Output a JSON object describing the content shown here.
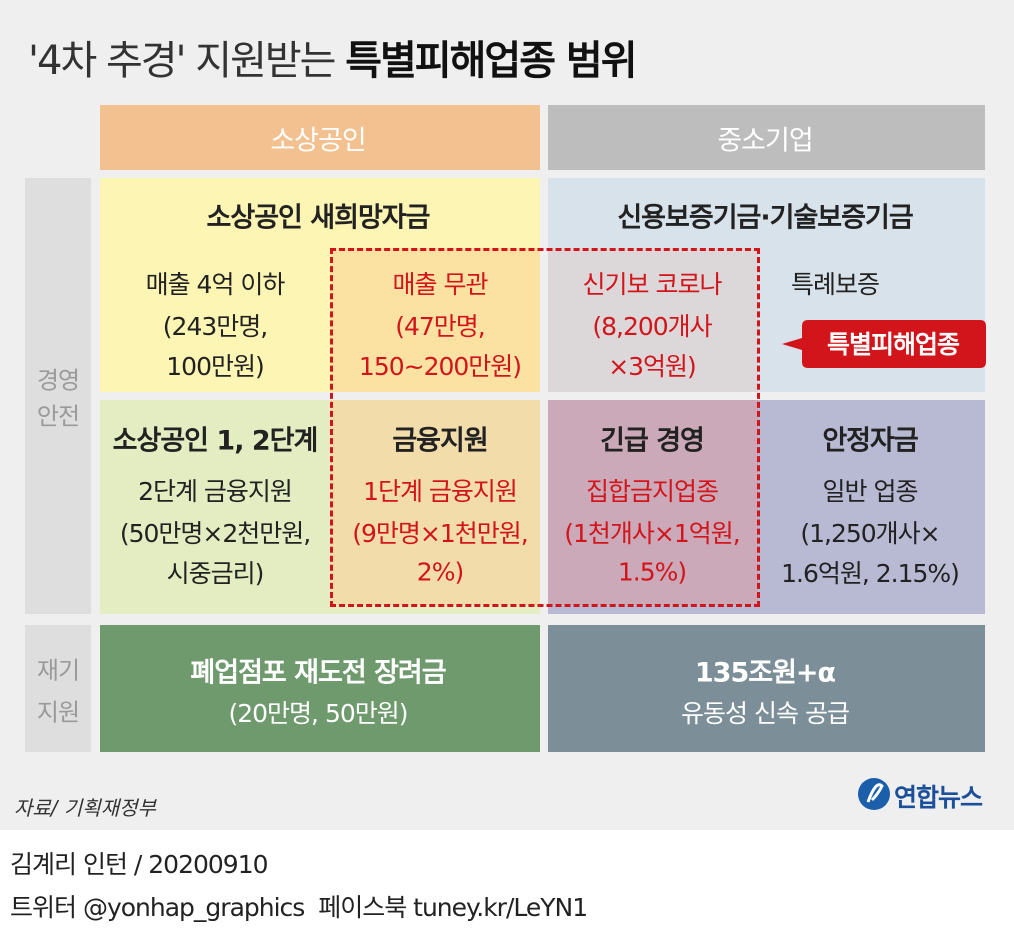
{
  "title": {
    "prefix": "'4차 추경' 지원받는",
    "emphasis": "특별피해업종 범위"
  },
  "column_headers": [
    "소상공인",
    "중소기업"
  ],
  "row_labels": [
    [
      "경영",
      "안전"
    ],
    [
      "재기",
      "지원"
    ]
  ],
  "management": {
    "small_business_top": {
      "title": "소상공인 새희망자금",
      "general": [
        "매출 4억 이하",
        "(243만명,",
        "100만원)"
      ],
      "special": [
        "매출 무관",
        "(47만명,",
        "150~200만원)"
      ]
    },
    "sme_top": {
      "title": "신용보증기금·기술보증기금",
      "special": [
        "신기보 코로나",
        "(8,200개사",
        "×3억원)"
      ],
      "general": [
        "특례보증"
      ]
    },
    "small_business_bottom": {
      "title": [
        "소상공인 1, 2단계",
        "금융지원"
      ],
      "general": [
        "2단계 금융지원",
        "(50만명×2천만원,",
        "시중금리)"
      ],
      "special": [
        "1단계 금융지원",
        "(9만명×1천만원,",
        "2%)"
      ]
    },
    "sme_bottom": {
      "special_title": "긴급 경영",
      "special": [
        "집합금지업종",
        "(1천개사×1억원,",
        "1.5%)"
      ],
      "general_title": "안정자금",
      "general": [
        "일반 업종",
        "(1,250개사×",
        "1.6억원, 2.15%)"
      ]
    }
  },
  "badge": "특별피해업종",
  "recovery": {
    "small_business": [
      "폐업점포 재도전 장려금",
      "(20만명, 50만원)"
    ],
    "sme": [
      "135조원+α",
      "유동성 신속 공급"
    ]
  },
  "source": "자료/ 기획재정부",
  "logo": "연합뉴스",
  "credit": "김계리 인턴 / 20200910",
  "social": "트위터 @yonhap_graphics  페이스북 tuney.kr/LeYN1"
}
